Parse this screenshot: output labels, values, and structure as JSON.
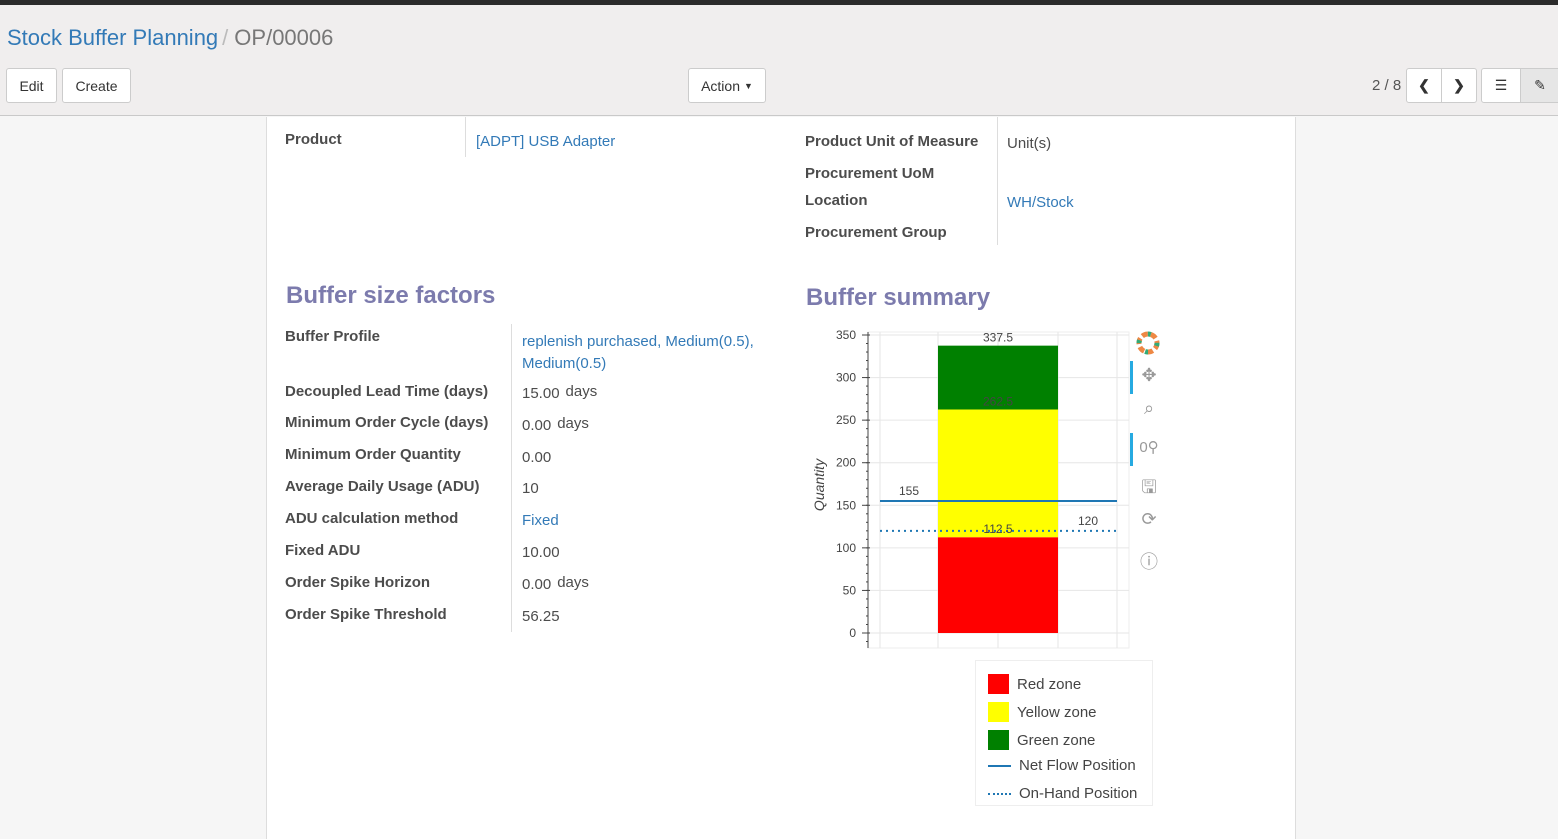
{
  "breadcrumb": {
    "parent": "Stock Buffer Planning",
    "current": "OP/00006"
  },
  "toolbar": {
    "edit": "Edit",
    "create": "Create",
    "action": "Action",
    "pager": "2 / 8"
  },
  "form": {
    "product_label": "Product",
    "product_value": "[ADPT] USB Adapter",
    "uom_label": "Product Unit of Measure",
    "uom_value": "Unit(s)",
    "proc_uom_label": "Procurement UoM",
    "location_label": "Location",
    "location_value": "WH/Stock",
    "proc_group_label": "Procurement Group"
  },
  "factors": {
    "title": "Buffer size factors",
    "rows": [
      {
        "label": "Buffer Profile",
        "value": "replenish purchased, Medium(0.5), Medium(0.5)",
        "unit": ""
      },
      {
        "label": "Decoupled Lead Time (days)",
        "value": "15.00",
        "unit": "days"
      },
      {
        "label": "Minimum Order Cycle (days)",
        "value": "0.00",
        "unit": "days"
      },
      {
        "label": "Minimum Order Quantity",
        "value": "0.00",
        "unit": ""
      },
      {
        "label": "Average Daily Usage (ADU)",
        "value": "10",
        "unit": ""
      },
      {
        "label": "ADU calculation method",
        "value": "Fixed",
        "unit": ""
      },
      {
        "label": "Fixed ADU",
        "value": "10.00",
        "unit": ""
      },
      {
        "label": "Order Spike Horizon",
        "value": "0.00",
        "unit": "days"
      },
      {
        "label": "Order Spike Threshold",
        "value": "56.25",
        "unit": ""
      }
    ]
  },
  "summary": {
    "title": "Buffer summary"
  },
  "chart_data": {
    "type": "bar",
    "ylabel": "Quantity",
    "ylim": [
      0,
      350
    ],
    "yticks": [
      0,
      50,
      100,
      150,
      200,
      250,
      300,
      350
    ],
    "grid": true,
    "legend_position": "bottom",
    "stack": [
      {
        "name": "Red zone",
        "from": 0,
        "to": 112.5,
        "color": "#ff0000"
      },
      {
        "name": "Yellow zone",
        "from": 112.5,
        "to": 262.5,
        "color": "#ffff00"
      },
      {
        "name": "Green zone",
        "from": 262.5,
        "to": 337.5,
        "color": "#008000"
      }
    ],
    "bar_labels": [
      "112.5",
      "262.5",
      "337.5"
    ],
    "lines": [
      {
        "name": "Net Flow Position",
        "value": 155,
        "label": "155",
        "style": "solid",
        "color": "#1f77b4"
      },
      {
        "name": "On-Hand Position",
        "value": 120,
        "label": "120",
        "style": "dotted",
        "color": "#1f77b4"
      }
    ]
  }
}
